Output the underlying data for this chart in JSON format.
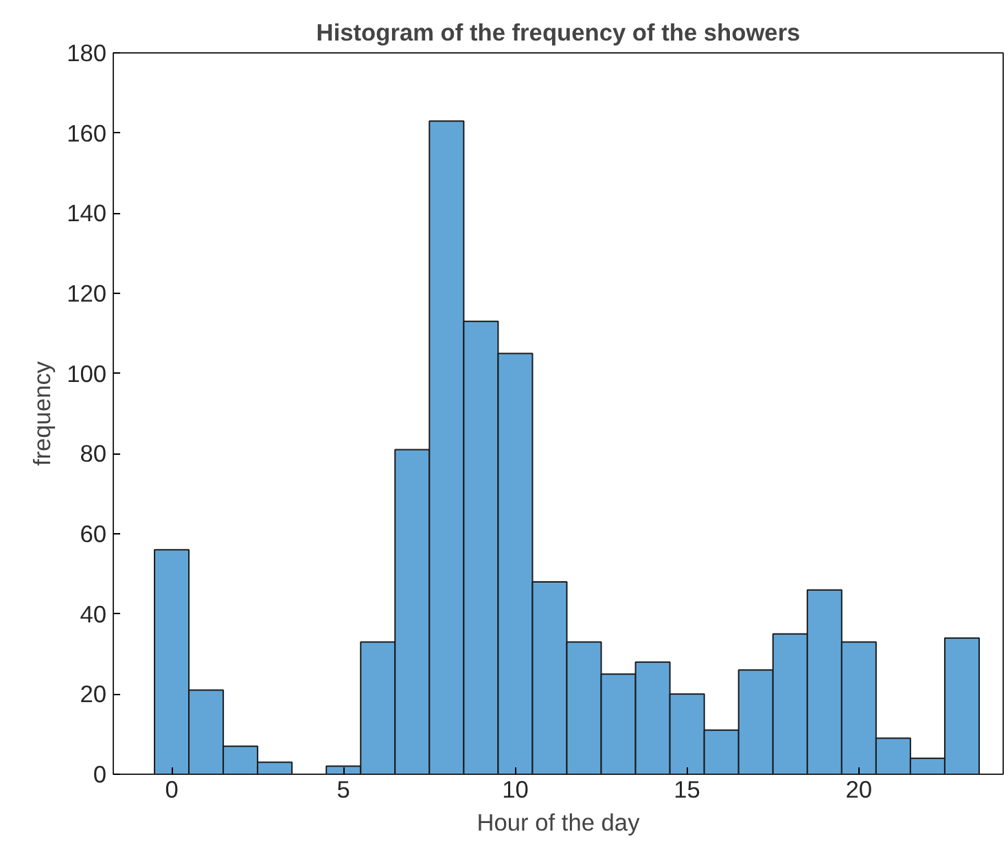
{
  "chart_data": {
    "type": "histogram",
    "title": "Histogram of the frequency of the showers",
    "xlabel": "Hour of the day",
    "ylabel": "frequency",
    "bins": [
      -0.5,
      0.5,
      1.5,
      2.5,
      3.5,
      4.5,
      5.5,
      6.5,
      7.5,
      8.5,
      9.5,
      10.5,
      11.5,
      12.5,
      13.5,
      14.5,
      15.5,
      16.5,
      17.5,
      18.5,
      19.5,
      20.5,
      21.5,
      22.5,
      23.5
    ],
    "values": [
      56,
      21,
      7,
      3,
      0,
      2,
      33,
      81,
      163,
      113,
      105,
      48,
      33,
      25,
      28,
      20,
      11,
      26,
      35,
      46,
      33,
      9,
      4,
      34
    ],
    "color": "#62a6d8",
    "xlim": [
      -1.7,
      24.2
    ],
    "xticks": [
      0,
      5,
      10,
      15,
      20
    ],
    "ylim": [
      0,
      180
    ],
    "yticks": [
      0,
      20,
      40,
      60,
      80,
      100,
      120,
      140,
      160,
      180
    ],
    "grid": false
  }
}
